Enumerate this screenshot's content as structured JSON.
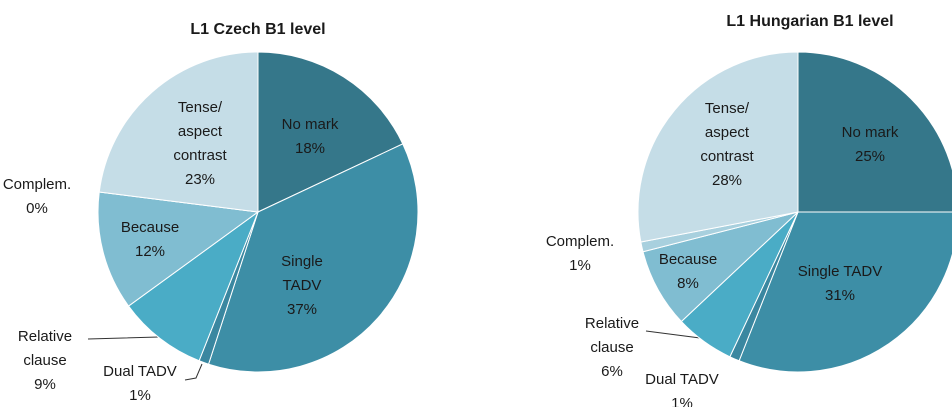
{
  "chart_data": [
    {
      "type": "pie",
      "title": "L1 Czech B1 level",
      "categories": [
        "No mark",
        "Single TADV",
        "Dual TADV",
        "Relative clause",
        "Because",
        "Complem.",
        "Tense/aspect contrast"
      ],
      "values": [
        18,
        37,
        1,
        9,
        12,
        0,
        23
      ],
      "value_labels": [
        "18%",
        "37%",
        "1%",
        "9%",
        "12%",
        "0%",
        "23%"
      ],
      "colors": [
        "#35778a",
        "#3d8ea6",
        "#3a87a0",
        "#4aacc6",
        "#80bdd1",
        "#a8d0de",
        "#c5dde7"
      ]
    },
    {
      "type": "pie",
      "title": "L1 Hungarian B1 level",
      "categories": [
        "No mark",
        "Single TADV",
        "Dual TADV",
        "Relative clause",
        "Because",
        "Complem.",
        "Tense/aspect contrast"
      ],
      "values": [
        25,
        31,
        1,
        6,
        8,
        1,
        28
      ],
      "value_labels": [
        "25%",
        "31%",
        "1%",
        "6%",
        "8%",
        "1%",
        "28%"
      ],
      "colors": [
        "#35778a",
        "#3d8ea6",
        "#3a87a0",
        "#4aacc6",
        "#80bdd1",
        "#a8d0de",
        "#c5dde7"
      ]
    }
  ]
}
